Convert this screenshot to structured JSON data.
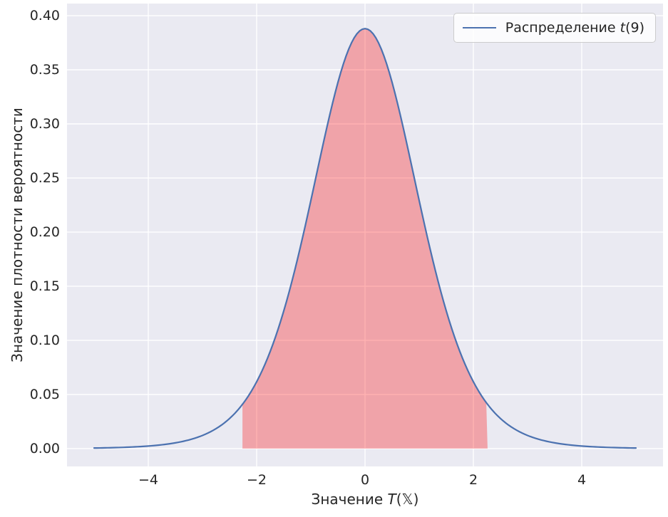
{
  "figure": {
    "background": "#ffffff",
    "plot_background": "#EAEAF2",
    "grid_color": "#ffffff",
    "text_color": "#262626"
  },
  "axes": {
    "xlabel": {
      "prefix": "Значение ",
      "math": "T",
      "suffix": "(𝕏)"
    },
    "ylabel": "Значение плотности вероятности"
  },
  "legend": {
    "label_prefix": "Распределение ",
    "label_math": "t",
    "label_suffix": "(9)",
    "line_color": "#4C72B0"
  },
  "chart_data": {
    "type": "line",
    "title": "",
    "xlabel": "Значение T(𝕏)",
    "ylabel": "Значение плотности вероятности",
    "grid": true,
    "legend_position": "upper right",
    "xlim": [
      -5.5,
      5.5
    ],
    "ylim": [
      -0.0165,
      0.4112
    ],
    "x_ticks": [
      {
        "value": -4,
        "label": "−4"
      },
      {
        "value": -2,
        "label": "−2"
      },
      {
        "value": 0,
        "label": "0"
      },
      {
        "value": 2,
        "label": "2"
      },
      {
        "value": 4,
        "label": "4"
      }
    ],
    "y_ticks": [
      {
        "value": 0.0,
        "label": "0.00"
      },
      {
        "value": 0.05,
        "label": "0.05"
      },
      {
        "value": 0.1,
        "label": "0.10"
      },
      {
        "value": 0.15,
        "label": "0.15"
      },
      {
        "value": 0.2,
        "label": "0.20"
      },
      {
        "value": 0.25,
        "label": "0.25"
      },
      {
        "value": 0.3,
        "label": "0.30"
      },
      {
        "value": 0.35,
        "label": "0.35"
      },
      {
        "value": 0.4,
        "label": "0.40"
      }
    ],
    "series": [
      {
        "name": "Распределение t(9)",
        "distribution": "student_t",
        "df": 9,
        "peak_density": 0.38803,
        "x_range": [
          -5,
          5
        ],
        "color": "#4C72B0",
        "line_width": 2.2,
        "sample_points": [
          [
            -5.0,
            0.0005
          ],
          [
            -4.5,
            0.0011
          ],
          [
            -4.0,
            0.0024
          ],
          [
            -3.5,
            0.0053
          ],
          [
            -3.0,
            0.0121
          ],
          [
            -2.5,
            0.0278
          ],
          [
            -2.0,
            0.0617
          ],
          [
            -1.5,
            0.1272
          ],
          [
            -1.0,
            0.2291
          ],
          [
            -0.5,
            0.3384
          ],
          [
            0.0,
            0.388
          ],
          [
            0.5,
            0.3384
          ],
          [
            1.0,
            0.2291
          ],
          [
            1.5,
            0.1272
          ],
          [
            2.0,
            0.0617
          ],
          [
            2.5,
            0.0278
          ],
          [
            3.0,
            0.0121
          ],
          [
            3.5,
            0.0053
          ],
          [
            4.0,
            0.0024
          ],
          [
            4.5,
            0.0011
          ],
          [
            5.0,
            0.0005
          ]
        ]
      }
    ],
    "shaded_region": {
      "from": -2.262,
      "to": 2.262,
      "boundary_density": 0.0409,
      "color": "#FF0000",
      "alpha": 0.3
    }
  }
}
